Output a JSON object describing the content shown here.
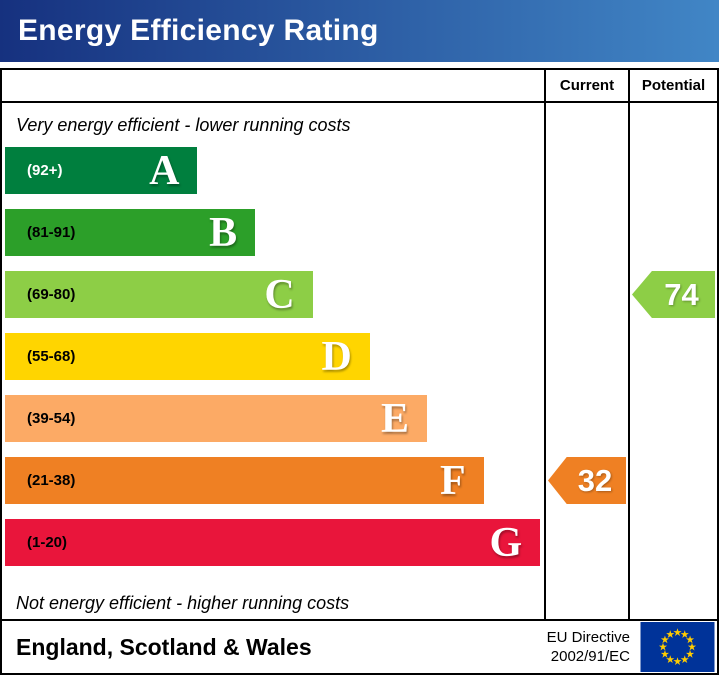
{
  "header": {
    "title": "Energy Efficiency Rating",
    "gradient_left": "#16317f",
    "gradient_right": "#4186c6"
  },
  "chart_data": {
    "type": "bar",
    "title": "Energy Efficiency Rating",
    "columns": [
      "Current",
      "Potential"
    ],
    "top_note": "Very energy efficient - lower running costs",
    "bottom_note": "Not energy efficient - higher running costs",
    "bands": [
      {
        "letter": "A",
        "range": "(92+)",
        "color": "#007f3e",
        "width_pct": 35.7,
        "range_text_color": "#ffffff"
      },
      {
        "letter": "B",
        "range": "(81-91)",
        "color": "#2c9f29",
        "width_pct": 46.4,
        "range_text_color": "#000000"
      },
      {
        "letter": "C",
        "range": "(69-80)",
        "color": "#8dce46",
        "width_pct": 57.1,
        "range_text_color": "#000000"
      },
      {
        "letter": "D",
        "range": "(55-68)",
        "color": "#ffd500",
        "width_pct": 67.7,
        "range_text_color": "#000000"
      },
      {
        "letter": "E",
        "range": "(39-54)",
        "color": "#fcaa65",
        "width_pct": 78.3,
        "range_text_color": "#000000"
      },
      {
        "letter": "F",
        "range": "(21-38)",
        "color": "#ef8023",
        "width_pct": 88.8,
        "range_text_color": "#000000"
      },
      {
        "letter": "G",
        "range": "(1-20)",
        "color": "#e9153b",
        "width_pct": 99.3,
        "range_text_color": "#000000"
      }
    ],
    "current": {
      "label": "Current",
      "value": "32",
      "band": "F",
      "band_index": 5,
      "color": "#ef8023"
    },
    "potential": {
      "label": "Potential",
      "value": "74",
      "band": "C",
      "band_index": 2,
      "color": "#8dce46"
    }
  },
  "footer": {
    "region": "England, Scotland & Wales",
    "directive_line1": "EU Directive",
    "directive_line2": "2002/91/EC",
    "eu_flag": {
      "background": "#003399",
      "star_color": "#ffcc00"
    }
  }
}
